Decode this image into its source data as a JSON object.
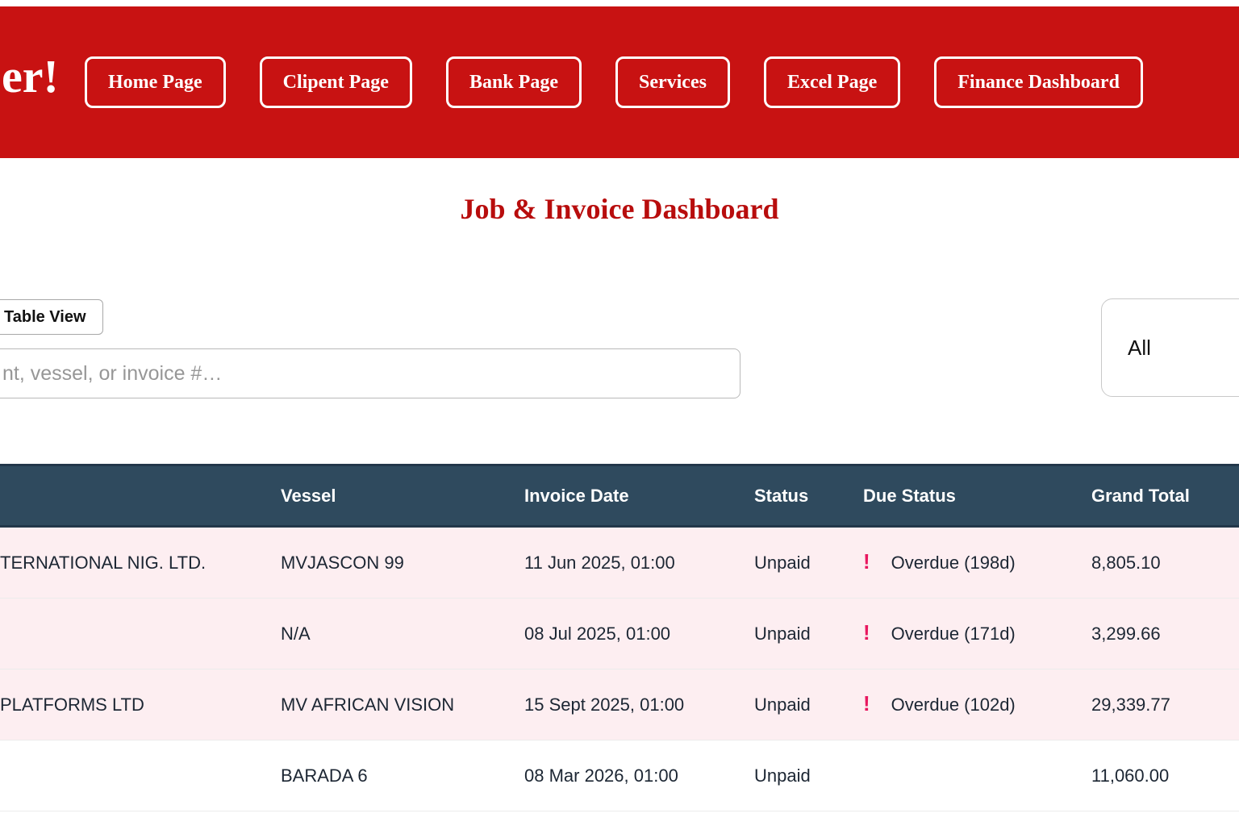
{
  "brand": {
    "partial_text": "er!"
  },
  "nav": {
    "items": [
      {
        "label": "Home Page"
      },
      {
        "label": "Clipent Page"
      },
      {
        "label": "Bank Page"
      },
      {
        "label": "Services"
      },
      {
        "label": "Excel Page"
      },
      {
        "label": "Finance Dashboard"
      }
    ]
  },
  "page": {
    "title": "Job & Invoice Dashboard"
  },
  "controls": {
    "view_toggle_label": "Table View",
    "search_placeholder": "nt, vessel, or invoice #…",
    "filter_selected": "All"
  },
  "table": {
    "columns": {
      "client": "",
      "vessel": "Vessel",
      "invoice_date": "Invoice Date",
      "status": "Status",
      "due_status": "Due Status",
      "grand_total": "Grand Total"
    },
    "rows": [
      {
        "client": "TERNATIONAL NIG. LTD.",
        "vessel": "MVJASCON 99",
        "invoice_date": "11 Jun 2025, 01:00",
        "status": "Unpaid",
        "due_icon": "!",
        "due_status": "Overdue (198d)",
        "grand_total": "8,805.10"
      },
      {
        "client": "",
        "vessel": "N/A",
        "invoice_date": "08 Jul 2025, 01:00",
        "status": "Unpaid",
        "due_icon": "!",
        "due_status": "Overdue (171d)",
        "grand_total": "3,299.66"
      },
      {
        "client": "PLATFORMS LTD",
        "vessel": "MV AFRICAN VISION",
        "invoice_date": "15 Sept 2025, 01:00",
        "status": "Unpaid",
        "due_icon": "!",
        "due_status": "Overdue (102d)",
        "grand_total": "29,339.77"
      },
      {
        "client": "",
        "vessel": "BARADA 6",
        "invoice_date": "08 Mar 2026, 01:00",
        "status": "Unpaid",
        "due_icon": "",
        "due_status": "",
        "grand_total": "11,060.00"
      }
    ]
  },
  "colors": {
    "header_red": "#c81212",
    "title_red": "#b80d0d",
    "table_header_navy": "#2f4a5e",
    "overdue_row_pink": "#fdeef1",
    "overdue_bang_pink": "#e8175f"
  }
}
